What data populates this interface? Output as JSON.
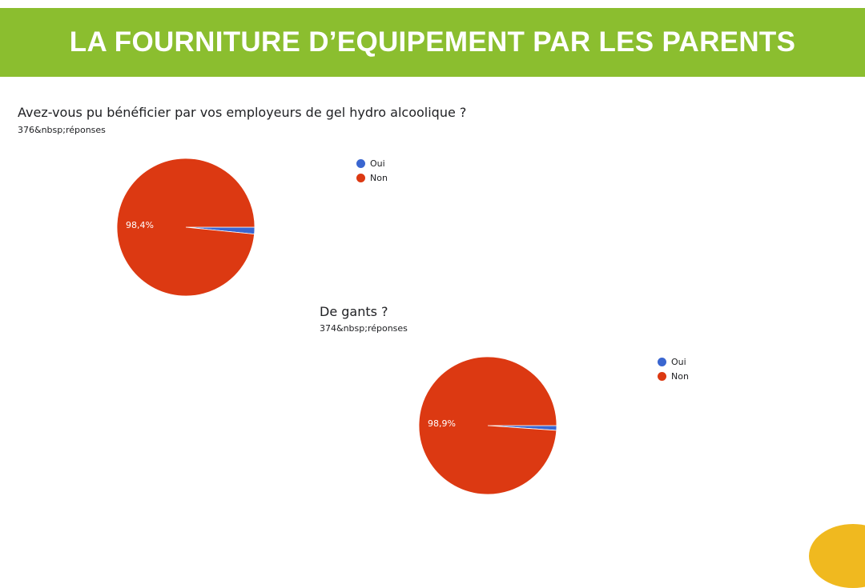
{
  "banner": {
    "title": "LA FOURNITURE D’EQUIPEMENT PAR LES PARENTS",
    "color": "#8bbe2f"
  },
  "colors": {
    "oui": "#3a66d0",
    "non": "#dc3912",
    "accent_corner": "#f0b91f"
  },
  "chart_data": [
    {
      "type": "pie",
      "title": "Avez-vous pu bénéficier par vos employeurs de gel hydro alcoolique ?",
      "subtitle": "376&nbsp;réponses",
      "legend_position": "right",
      "slices": [
        {
          "label": "Oui",
          "value": 1.6,
          "color": "#3a66d0"
        },
        {
          "label": "Non",
          "value": 98.4,
          "color": "#dc3912",
          "data_label": "98,4%"
        }
      ]
    },
    {
      "type": "pie",
      "title": "De gants ?",
      "subtitle": "374&nbsp;réponses",
      "legend_position": "right",
      "slices": [
        {
          "label": "Oui",
          "value": 1.1,
          "color": "#3a66d0"
        },
        {
          "label": "Non",
          "value": 98.9,
          "color": "#dc3912",
          "data_label": "98,9%"
        }
      ]
    }
  ]
}
